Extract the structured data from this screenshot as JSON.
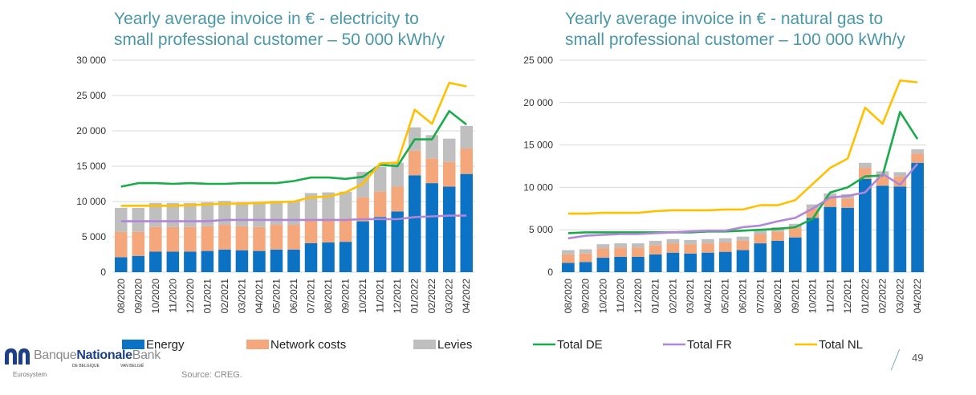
{
  "footer": {
    "source": "Source: CREG.",
    "page_number": "49",
    "logo": {
      "brand_light": "Banque",
      "brand_bold": "Nationale",
      "brand_tail": "Bank",
      "sub_fr": "DE BELGIQUE",
      "sub_nl": "VAN BELGIË",
      "eurosystem": "Eurosystem"
    }
  },
  "colors": {
    "title": "#4a97a8",
    "energy": "#0b72c4",
    "network": "#f4a77b",
    "levies": "#bfbfbf",
    "total_de": "#1aab4b",
    "total_fr": "#b086d6",
    "total_nl": "#ffc000",
    "grid": "#d9d9d9",
    "logo_blue": "#1d3f87"
  },
  "chart_data": [
    {
      "type": "bar",
      "stacked": true,
      "title": "Yearly average invoice in € - electricity to small professional customer – 50 000 kWh/y",
      "categories": [
        "08/2020",
        "09/2020",
        "10/2020",
        "11/2020",
        "12/2020",
        "01/2021",
        "02/2021",
        "03/2021",
        "04/2021",
        "05/2021",
        "06/2021",
        "07/2021",
        "08/2021",
        "09/2021",
        "10/2021",
        "11/2021",
        "12/2021",
        "01/2022",
        "02/2022",
        "03/2022",
        "04/2022"
      ],
      "ylim": [
        0,
        30000
      ],
      "yticks": [
        "0",
        "5 000",
        "10 000",
        "15 000",
        "20 000",
        "25 000",
        "30 000"
      ],
      "ytick_values": [
        0,
        5000,
        10000,
        15000,
        20000,
        25000,
        30000
      ],
      "grid": true,
      "series": [
        {
          "name": "Energy",
          "kind": "bar",
          "values": [
            2100,
            2300,
            2900,
            2900,
            2900,
            3000,
            3200,
            3100,
            3000,
            3200,
            3200,
            4100,
            4200,
            4300,
            7200,
            7800,
            8600,
            13700,
            12600,
            12100,
            13900
          ]
        },
        {
          "name": "Network costs",
          "kind": "bar",
          "values": [
            3600,
            3400,
            3500,
            3500,
            3500,
            3500,
            3500,
            3400,
            3400,
            3500,
            3500,
            3400,
            3300,
            3300,
            3400,
            3600,
            3500,
            3500,
            3500,
            3500,
            3600
          ]
        },
        {
          "name": "Levies",
          "kind": "bar",
          "values": [
            3400,
            3400,
            3400,
            3400,
            3400,
            3400,
            3400,
            3400,
            3400,
            3400,
            3400,
            3700,
            3800,
            3800,
            3600,
            3500,
            3400,
            3300,
            3300,
            3300,
            3200
          ]
        },
        {
          "name": "Total DE",
          "kind": "line",
          "values": [
            12100,
            12600,
            12600,
            12500,
            12600,
            12500,
            12500,
            12600,
            12600,
            12600,
            12900,
            13400,
            13400,
            13200,
            13500,
            15200,
            15000,
            18800,
            18800,
            22800,
            20900
          ]
        },
        {
          "name": "Total FR",
          "kind": "line",
          "values": [
            7200,
            7200,
            7200,
            7200,
            7200,
            7200,
            7400,
            7400,
            7400,
            7400,
            7400,
            7400,
            7400,
            7400,
            7500,
            7500,
            7500,
            7800,
            7900,
            8000,
            8000
          ]
        },
        {
          "name": "Total NL",
          "kind": "line",
          "values": [
            9400,
            9400,
            9400,
            9400,
            9500,
            9600,
            9700,
            9700,
            9800,
            9900,
            10000,
            10600,
            10700,
            11300,
            12500,
            15400,
            15500,
            23000,
            21000,
            26800,
            26300
          ]
        }
      ]
    },
    {
      "type": "bar",
      "stacked": true,
      "title": "Yearly average invoice in € - natural gas to small professional customer – 100 000 kWh/y",
      "categories": [
        "08/2020",
        "09/2020",
        "10/2020",
        "11/2020",
        "12/2020",
        "01/2021",
        "02/2021",
        "03/2021",
        "04/2021",
        "05/2021",
        "06/2021",
        "07/2021",
        "08/2021",
        "09/2021",
        "10/2021",
        "11/2021",
        "12/2021",
        "01/2022",
        "02/2022",
        "03/2022",
        "04/2022"
      ],
      "ylim": [
        0,
        25000
      ],
      "yticks": [
        "0",
        "5 000",
        "10 000",
        "15 000",
        "20 000",
        "25 000"
      ],
      "ytick_values": [
        0,
        5000,
        10000,
        15000,
        20000,
        25000
      ],
      "grid": true,
      "series": [
        {
          "name": "Energy",
          "kind": "bar",
          "values": [
            1100,
            1200,
            1700,
            1800,
            1800,
            2100,
            2300,
            2200,
            2300,
            2400,
            2600,
            3400,
            3700,
            4100,
            6400,
            7700,
            7600,
            11000,
            10200,
            10100,
            12900
          ]
        },
        {
          "name": "Network costs",
          "kind": "bar",
          "values": [
            1000,
            1000,
            1100,
            1100,
            1100,
            1100,
            1100,
            1100,
            1100,
            1100,
            1100,
            1100,
            1100,
            1100,
            1100,
            1100,
            1100,
            1300,
            1100,
            1200,
            1100
          ]
        },
        {
          "name": "Levies",
          "kind": "bar",
          "values": [
            500,
            500,
            500,
            500,
            500,
            500,
            500,
            500,
            500,
            500,
            500,
            500,
            500,
            500,
            500,
            500,
            500,
            600,
            600,
            500,
            500
          ]
        },
        {
          "name": "Total DE",
          "kind": "line",
          "values": [
            4600,
            4700,
            4700,
            4700,
            4700,
            4700,
            4700,
            4700,
            4800,
            4800,
            4900,
            5000,
            5100,
            5300,
            6300,
            9400,
            10000,
            11300,
            11400,
            18900,
            15700
          ]
        },
        {
          "name": "Total FR",
          "kind": "line",
          "values": [
            4000,
            4300,
            4400,
            4500,
            4500,
            4600,
            4700,
            4800,
            4900,
            4900,
            5300,
            5500,
            6000,
            6400,
            7500,
            8800,
            9000,
            9400,
            11600,
            10300,
            12800
          ]
        },
        {
          "name": "Total NL",
          "kind": "line",
          "values": [
            6900,
            6900,
            7000,
            7000,
            7000,
            7200,
            7300,
            7300,
            7300,
            7400,
            7400,
            7900,
            7900,
            8500,
            10400,
            12300,
            13400,
            19400,
            17500,
            22600,
            22400
          ]
        }
      ]
    }
  ]
}
